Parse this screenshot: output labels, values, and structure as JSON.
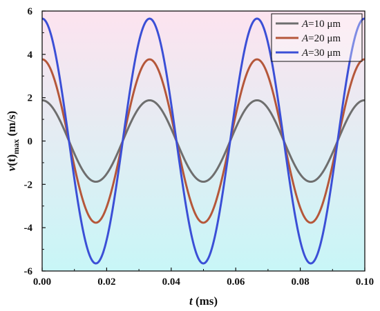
{
  "chart_data": {
    "type": "line",
    "xlabel_var": "t",
    "xlabel_unit": " (ms)",
    "ylabel_var": "v",
    "ylabel_arg": "(t)",
    "ylabel_sub": "max",
    "ylabel_unit": " (m/s)",
    "xlim": [
      0.0,
      0.1
    ],
    "ylim": [
      -6,
      6
    ],
    "x_ticks": [
      0.0,
      0.02,
      0.04,
      0.06,
      0.08,
      0.1
    ],
    "x_tick_labels": [
      "0.00",
      "0.02",
      "0.04",
      "0.06",
      "0.08",
      "0.10"
    ],
    "y_ticks": [
      -6,
      -4,
      -2,
      0,
      2,
      4,
      6
    ],
    "y_tick_labels": [
      "-6",
      "-4",
      "-2",
      "0",
      "2",
      "4",
      "6"
    ],
    "grid": false,
    "legend_position": "top-right",
    "background_gradient": {
      "top": "#fde3ef",
      "bottom": "#c8f6f7"
    },
    "curve": "cosine",
    "period": 0.0333,
    "series": [
      {
        "name_var": "A",
        "name_rest": "=10 μm",
        "amplitude": 1.88,
        "color": "#6e6e6e"
      },
      {
        "name_var": "A",
        "name_rest": "=20 μm",
        "amplitude": 3.77,
        "color": "#b5573a"
      },
      {
        "name_var": "A",
        "name_rest": "=30 μm",
        "amplitude": 5.65,
        "color": "#3b4fd6"
      }
    ]
  }
}
